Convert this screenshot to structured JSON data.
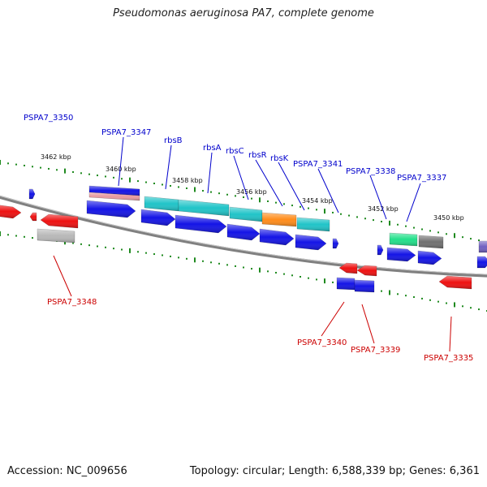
{
  "title": "Pseudomonas aeruginosa PA7, complete genome",
  "footer": {
    "accession": "Accession: NC_009656",
    "summary": "Topology: circular; Length: 6,588,339 bp; Genes: 6,361"
  },
  "colors": {
    "backbone": "#808080",
    "tick": "#1f8a1f",
    "forward_label": "#0000cc",
    "reverse_label": "#cc0000",
    "blue_gene": "#1414e6",
    "red_gene": "#ee1111",
    "cyan_gene": "#20c4c8",
    "orange_gene": "#ff8c1a",
    "green_gene": "#22e08a",
    "gray_gene": "#707070",
    "light_gray_gene": "#b8b8b8",
    "pink_gene": "#e89aa0",
    "purple_gene": "#7060c0"
  },
  "kbp_ticks": [
    "3462 kbp",
    "3460 kbp",
    "3458 kbp",
    "3456 kbp",
    "3454 kbp",
    "3452 kbp",
    "3450 kbp"
  ],
  "forward_labels": [
    "PSPA7_3350",
    "PSPA7_3347",
    "rbsB",
    "rbsA",
    "rbsC",
    "rbsR",
    "rbsK",
    "PSPA7_3341",
    "PSPA7_3338",
    "PSPA7_3337"
  ],
  "reverse_labels": [
    "PSPA7_3348",
    "PSPA7_3340",
    "PSPA7_3339",
    "PSPA7_3335"
  ]
}
